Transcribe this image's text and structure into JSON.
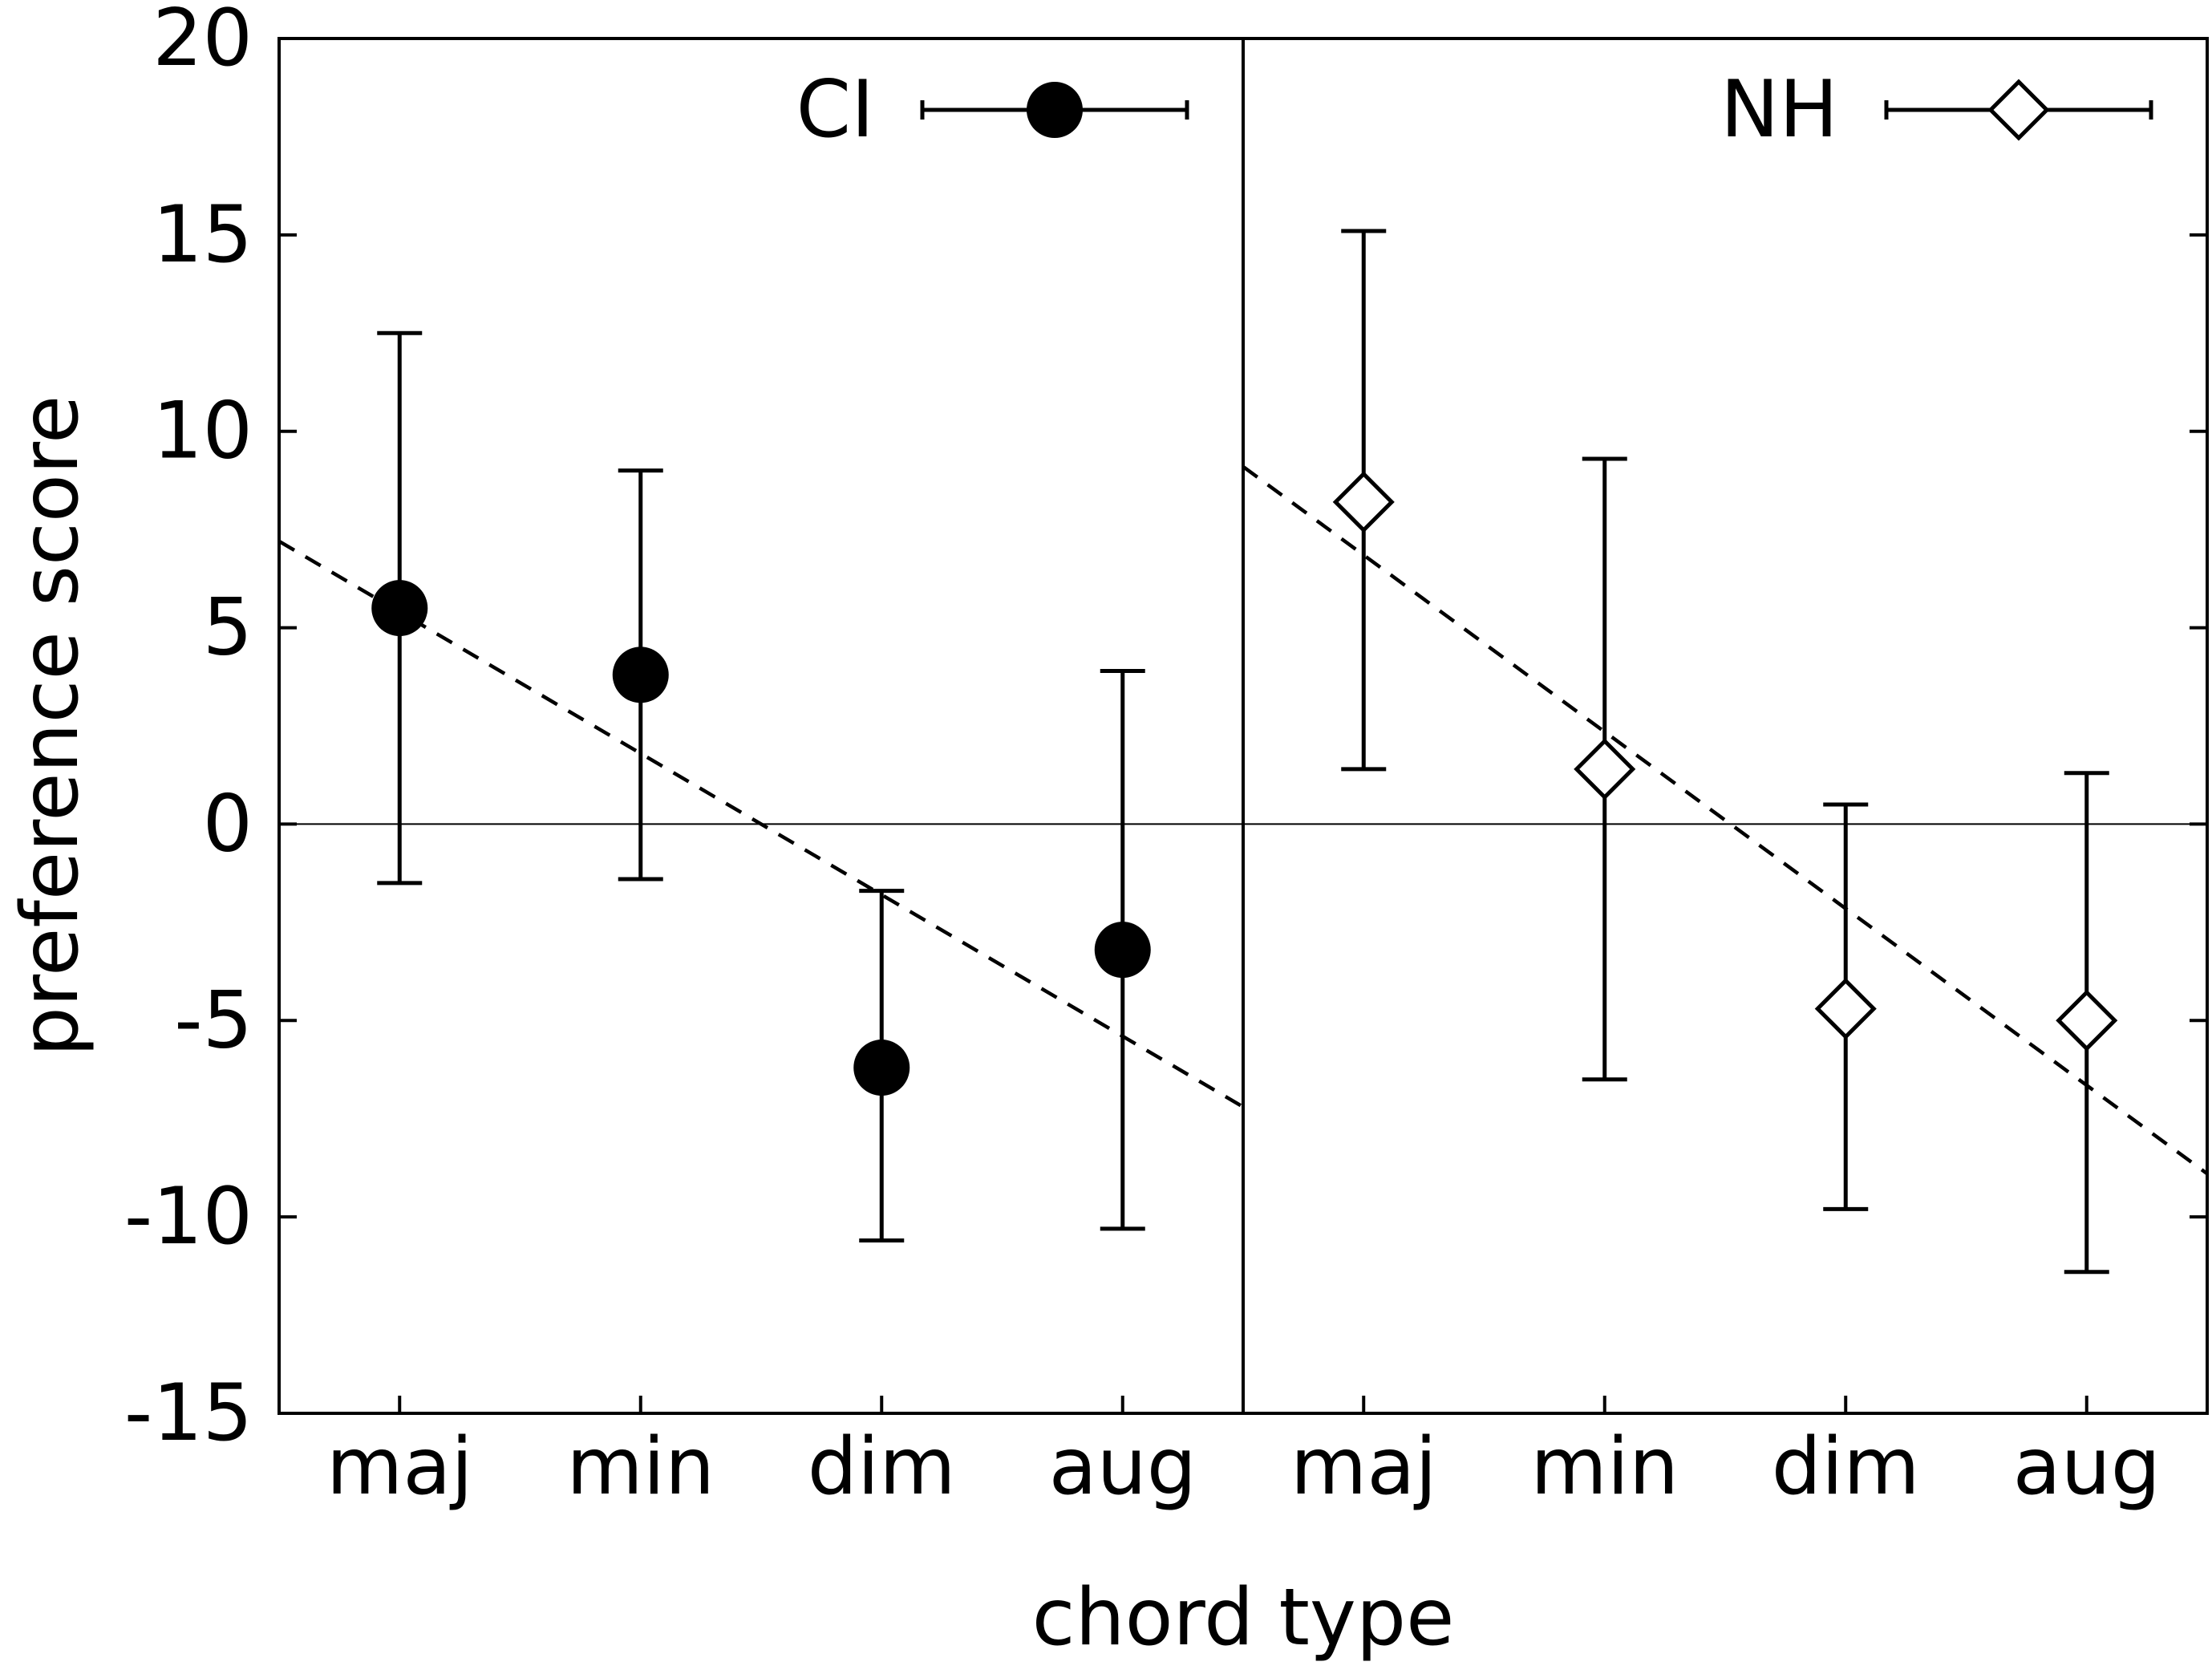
{
  "chart_data": {
    "type": "scatter",
    "xlabel": "chord type",
    "ylabel": "preference score",
    "ylim": [
      -15,
      20
    ],
    "yticks": [
      -15,
      -10,
      -5,
      0,
      5,
      10,
      15,
      20
    ],
    "ytick_labels": [
      "-15",
      "-10",
      "-5",
      "0",
      "5",
      "10",
      "15",
      "20"
    ],
    "categories": [
      "maj",
      "min",
      "dim",
      "aug"
    ],
    "zero_line": true,
    "panels": [
      {
        "series": {
          "name": "CI",
          "marker": "filled-circle",
          "values": [
            5.5,
            3.8,
            -6.2,
            -3.2
          ],
          "err_low": [
            -1.5,
            -1.4,
            -10.6,
            -10.3
          ],
          "err_high": [
            12.5,
            9.0,
            -1.7,
            3.9
          ]
        },
        "trend": {
          "x_start": 0.5,
          "y_start": 7.2,
          "x_end": 4.5,
          "y_end": -7.2,
          "style": "dashed"
        },
        "legend": "top-right"
      },
      {
        "series": {
          "name": "NH",
          "marker": "open-diamond",
          "values": [
            8.2,
            1.4,
            -4.7,
            -5.0
          ],
          "err_low": [
            1.4,
            -6.5,
            -9.8,
            -11.4
          ],
          "err_high": [
            15.1,
            9.3,
            0.5,
            1.3
          ]
        },
        "trend": {
          "x_start": 0.5,
          "y_start": 9.1,
          "x_end": 4.5,
          "y_end": -8.9,
          "style": "dashed"
        },
        "legend": "top-right"
      }
    ]
  },
  "colors": {
    "ink": "#000000",
    "background": "#ffffff"
  }
}
